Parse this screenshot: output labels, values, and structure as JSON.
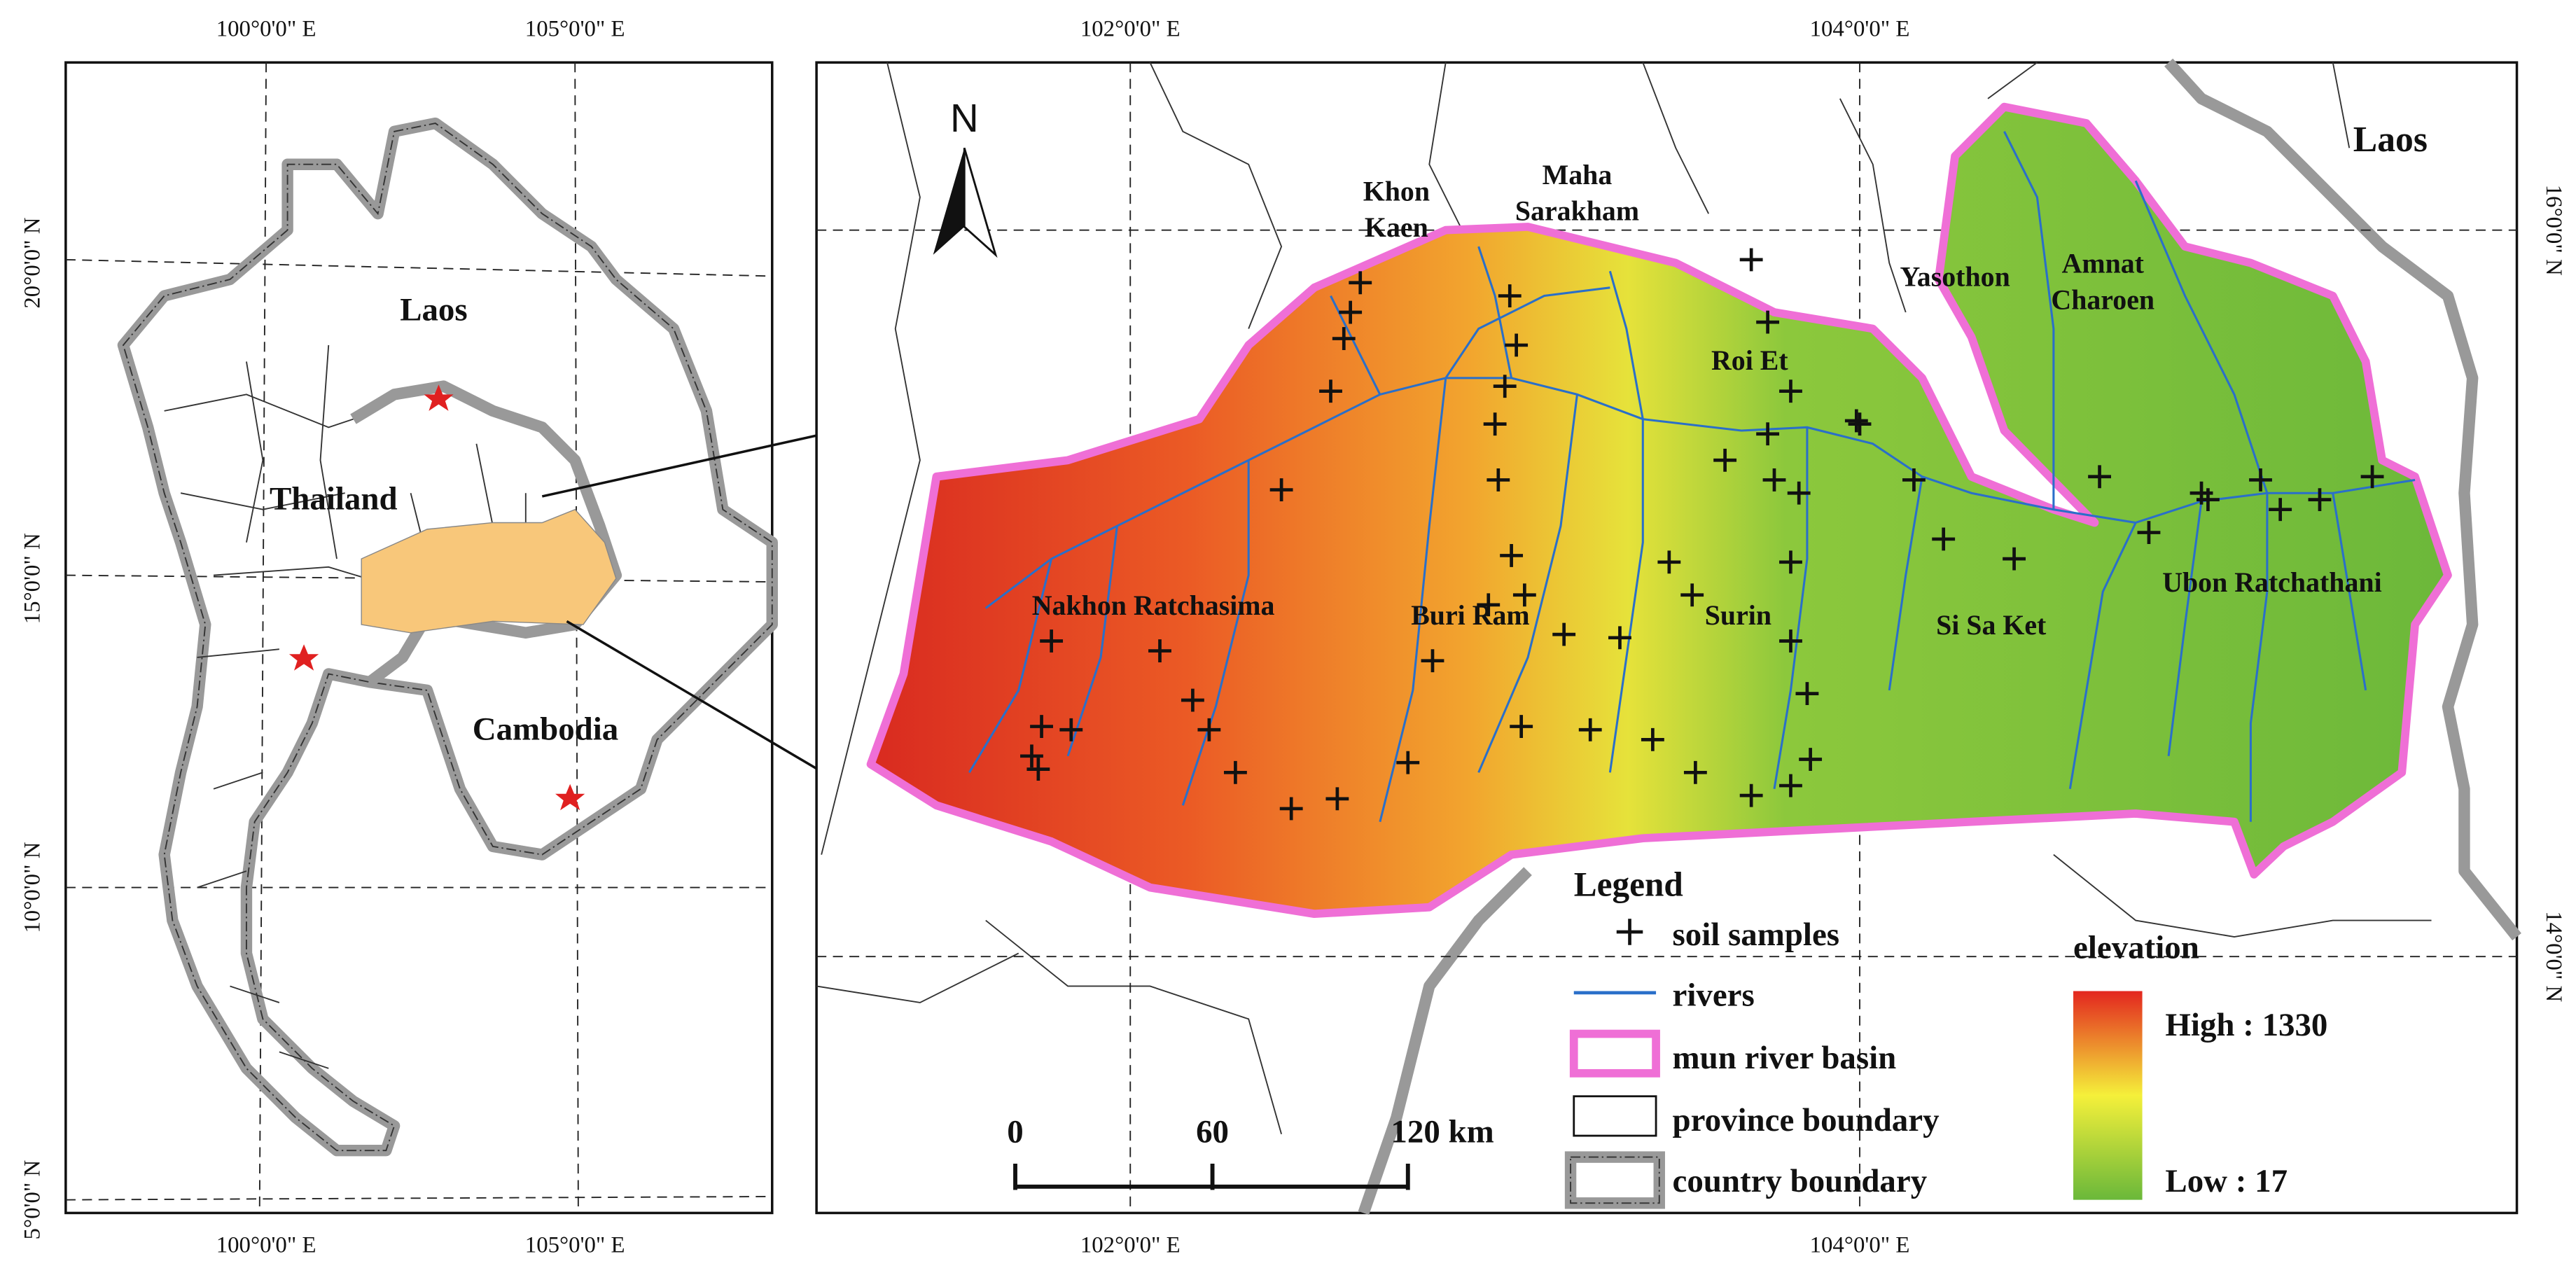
{
  "inset": {
    "lon_labels": [
      "100°0'0\" E",
      "105°0'0\" E"
    ],
    "lat_labels": [
      "20°0'0\" N",
      "15°0'0\" N",
      "10°0'0\" N",
      "5°0'0\" N"
    ],
    "places": [
      "Laos",
      "Thailand",
      "Cambodia"
    ]
  },
  "main": {
    "lon_labels": [
      "102°0'0\" E",
      "104°0'0\" E"
    ],
    "lat_labels": [
      "16°0'0\" N",
      "14°0'0\" N"
    ],
    "north": "N",
    "country": "Laos",
    "provinces": [
      "Khon",
      "Kaen",
      "Maha",
      "Sarakham",
      "Yasothon",
      "Amnat",
      "Charoen",
      "Roi Et",
      "Nakhon Ratchasima",
      "Buri Ram",
      "Surin",
      "Si Sa Ket",
      "Ubon Ratchathani"
    ]
  },
  "legend": {
    "title": "Legend",
    "items": [
      "soil samples",
      "rivers",
      "mun river basin",
      "province boundary",
      "country boundary"
    ],
    "elevation_title": "elevation",
    "high": "High : 1330",
    "low": "Low : 17"
  },
  "scale_bar": {
    "labels": [
      "0",
      "60",
      "120 km"
    ]
  }
}
